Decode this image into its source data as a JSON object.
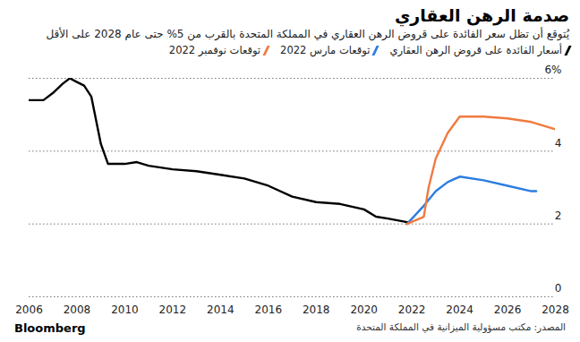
{
  "chart_data": {
    "type": "line",
    "title": "صدمة الرهن العقاري",
    "subtitle": "يُتوقع أن تظل سعر الفائدة على قروض الرهن العقاري في المملكة المتحدة بالقرب من 5% حتى عام 2028 على الأقل",
    "source": "المصدر: مكتب مسؤولية الميزانية في المملكة المتحدة",
    "brand": "Bloomberg",
    "series": [
      {
        "name": "أسعار الفائدة على قروض الرهن العقاري",
        "color": "#000000",
        "x": [
          2006,
          2006.6,
          2007,
          2007.4,
          2007.7,
          2008,
          2008.3,
          2008.6,
          2009,
          2009.3,
          2010,
          2010.5,
          2011,
          2012,
          2013,
          2014,
          2015,
          2016,
          2017,
          2018,
          2019,
          2020,
          2020.5,
          2021,
          2021.8
        ],
        "values": [
          5.4,
          5.4,
          5.6,
          5.85,
          6.0,
          5.9,
          5.8,
          5.5,
          4.2,
          3.65,
          3.65,
          3.7,
          3.6,
          3.5,
          3.45,
          3.35,
          3.25,
          3.05,
          2.75,
          2.6,
          2.55,
          2.4,
          2.2,
          2.15,
          2.05
        ]
      },
      {
        "name": "توقعات مارس 2022",
        "color": "#2b7de0",
        "x": [
          2021.8,
          2022.5,
          2023,
          2023.5,
          2024,
          2025,
          2026,
          2027,
          2027.2
        ],
        "values": [
          2.0,
          2.5,
          2.9,
          3.15,
          3.3,
          3.2,
          3.05,
          2.9,
          2.9
        ]
      },
      {
        "name": "توقعات نوفمبر 2022",
        "color": "#f07b3f",
        "x": [
          2021.8,
          2022.5,
          2022.7,
          2023,
          2023.5,
          2024,
          2025,
          2026,
          2027,
          2028
        ],
        "values": [
          2.0,
          2.2,
          3.0,
          3.8,
          4.5,
          4.95,
          4.95,
          4.9,
          4.8,
          4.6
        ]
      }
    ],
    "xlim": [
      2006,
      2028
    ],
    "xticks": [
      2006,
      2008,
      2010,
      2012,
      2014,
      2016,
      2018,
      2020,
      2022,
      2024,
      2026,
      2028
    ],
    "ylim": [
      0,
      6
    ],
    "yticks": [
      0,
      2,
      4,
      {
        "value": 6,
        "label": "6%"
      }
    ],
    "grid": true,
    "legend": "top"
  }
}
